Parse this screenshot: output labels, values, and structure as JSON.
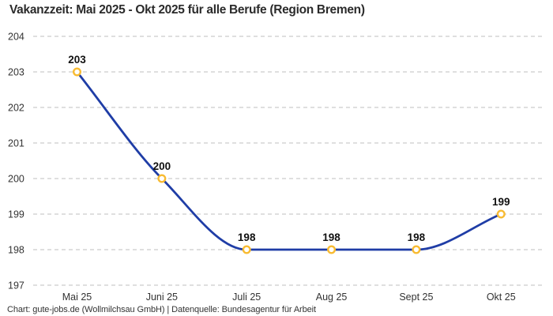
{
  "title": "Vakanzzeit: Mai 2025 - Okt 2025 für alle Berufe (Region Bremen)",
  "footer": "Chart: gute-jobs.de (Wollmilchsau GmbH) | Datenquelle: Bundesagentur für Arbeit",
  "chart_data": {
    "type": "line",
    "title": "Vakanzzeit: Mai 2025 - Okt 2025 für alle Berufe (Region Bremen)",
    "categories": [
      "Mai 25",
      "Juni 25",
      "Juli 25",
      "Aug 25",
      "Sept 25",
      "Okt 25"
    ],
    "series": [
      {
        "name": "Vakanzzeit",
        "values": [
          203,
          200,
          198,
          198,
          198,
          199
        ]
      }
    ],
    "xlabel": "",
    "ylabel": "",
    "ylim": [
      197,
      204
    ],
    "yticks": [
      197,
      198,
      199,
      200,
      201,
      202,
      203,
      204
    ],
    "grid": "horizontal-dashed",
    "legend": "none",
    "curve": "monotone",
    "data_labels_shown": true,
    "colors": {
      "line": "#1f3da6",
      "marker_ring": "#f8bb32",
      "marker_fill": "#ffffff",
      "grid": "#cccccc",
      "tick_text": "#333333",
      "data_label_text": "#111111",
      "title_text": "#2b2b2b",
      "footer_text": "#333333",
      "background": "#ffffff"
    }
  }
}
